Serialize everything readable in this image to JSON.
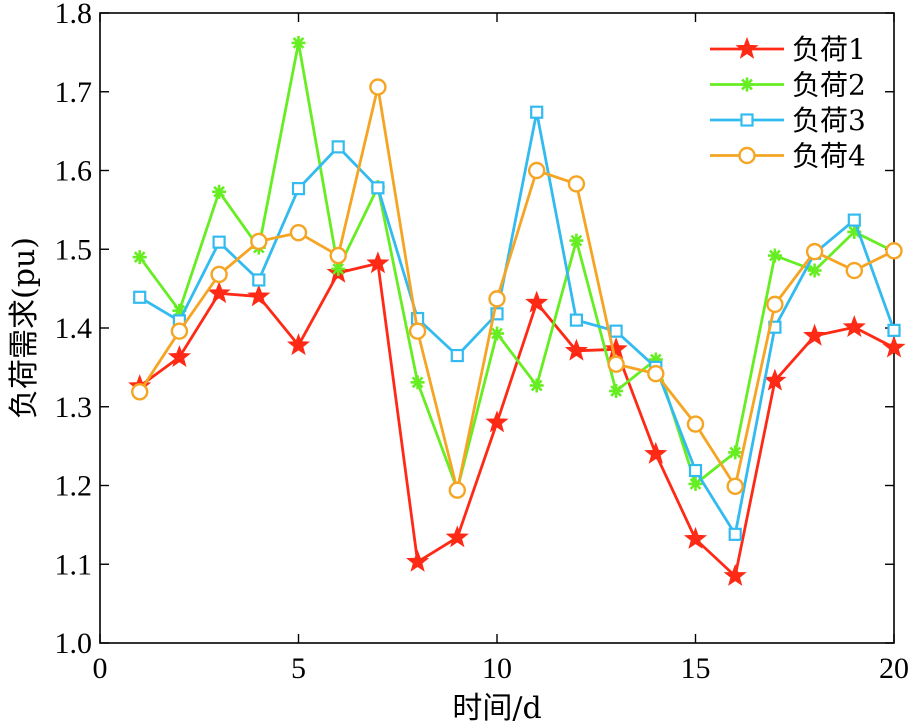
{
  "chart_data": {
    "type": "line",
    "xlabel": "时间/d",
    "ylabel": "负荷需求(pu)",
    "xlim": [
      0,
      20
    ],
    "ylim": [
      1.0,
      1.8
    ],
    "xticks": [
      "0",
      "5",
      "10",
      "15",
      "20"
    ],
    "yticks": [
      "1.0",
      "1.1",
      "1.2",
      "1.3",
      "1.4",
      "1.5",
      "1.6",
      "1.7",
      "1.8"
    ],
    "legend_position": "top-right",
    "x": [
      1,
      2,
      3,
      4,
      5,
      6,
      7,
      8,
      9,
      10,
      11,
      12,
      13,
      14,
      15,
      16,
      17,
      18,
      19,
      20
    ],
    "series": [
      {
        "name": "负荷1",
        "color": "#ff2a16",
        "marker": "star",
        "values": [
          1.326,
          1.363,
          1.444,
          1.44,
          1.378,
          1.47,
          1.482,
          1.103,
          1.134,
          1.28,
          1.432,
          1.371,
          1.373,
          1.24,
          1.132,
          1.085,
          1.333,
          1.39,
          1.401,
          1.375
        ]
      },
      {
        "name": "负荷2",
        "color": "#66ee22",
        "marker": "asterisk",
        "values": [
          1.49,
          1.422,
          1.573,
          1.502,
          1.762,
          1.475,
          1.579,
          1.331,
          1.195,
          1.393,
          1.327,
          1.511,
          1.32,
          1.36,
          1.202,
          1.242,
          1.492,
          1.473,
          1.522,
          1.497
        ]
      },
      {
        "name": "负荷3",
        "color": "#33bbf0",
        "marker": "square",
        "values": [
          1.439,
          1.409,
          1.509,
          1.461,
          1.577,
          1.63,
          1.578,
          1.412,
          1.365,
          1.418,
          1.674,
          1.41,
          1.396,
          1.35,
          1.219,
          1.138,
          1.401,
          1.495,
          1.537,
          1.397
        ]
      },
      {
        "name": "负荷4",
        "color": "#f5a523",
        "marker": "circle",
        "values": [
          1.319,
          1.396,
          1.468,
          1.51,
          1.521,
          1.492,
          1.706,
          1.396,
          1.194,
          1.437,
          1.6,
          1.583,
          1.354,
          1.342,
          1.278,
          1.199,
          1.43,
          1.497,
          1.473,
          1.498
        ]
      }
    ]
  }
}
